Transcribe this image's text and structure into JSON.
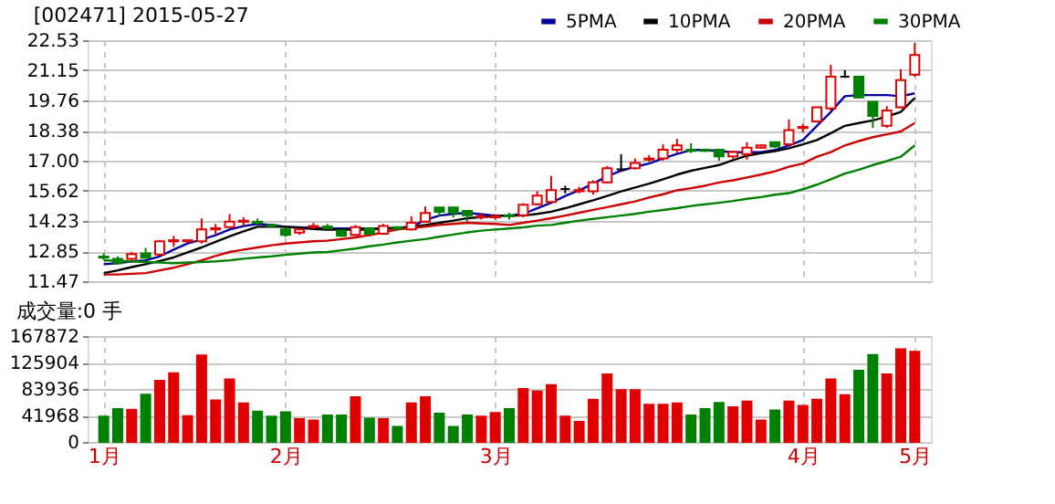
{
  "chart_data": [
    {
      "type": "candlestick",
      "title": "[002471] 2015-05-27",
      "categories": [
        null,
        null,
        null,
        null,
        null,
        null,
        null,
        null,
        null,
        null,
        null,
        null,
        null,
        null,
        null,
        null,
        null,
        null,
        null,
        null,
        null,
        null,
        null,
        null,
        null,
        null,
        null,
        null,
        null,
        null,
        null,
        null,
        null,
        null,
        null,
        null,
        null,
        null,
        null,
        null,
        null,
        null,
        null,
        null,
        null,
        null,
        null,
        null,
        null,
        null,
        null,
        null,
        null,
        null,
        null,
        null,
        null,
        null,
        null
      ],
      "ohlc": [
        [
          12.6,
          12.75,
          12.45,
          12.55
        ],
        [
          12.5,
          12.6,
          12.25,
          12.3
        ],
        [
          12.5,
          12.8,
          12.45,
          12.72
        ],
        [
          12.75,
          13.0,
          12.5,
          12.55
        ],
        [
          12.7,
          13.35,
          12.65,
          13.3
        ],
        [
          13.3,
          13.55,
          13.05,
          13.35
        ],
        [
          13.3,
          13.4,
          13.25,
          13.35
        ],
        [
          13.3,
          14.35,
          13.2,
          13.85
        ],
        [
          13.85,
          14.1,
          13.6,
          13.9
        ],
        [
          13.95,
          14.55,
          13.95,
          14.2
        ],
        [
          14.2,
          14.4,
          14.0,
          14.25
        ],
        [
          14.2,
          14.35,
          14.05,
          14.15
        ],
        [
          14.05,
          14.1,
          13.95,
          14.0
        ],
        [
          13.85,
          13.9,
          13.5,
          13.6
        ],
        [
          13.7,
          13.9,
          13.6,
          13.85
        ],
        [
          13.95,
          14.15,
          13.85,
          14.0
        ],
        [
          13.98,
          14.1,
          13.85,
          13.9
        ],
        [
          13.8,
          13.85,
          13.5,
          13.55
        ],
        [
          13.6,
          14.05,
          13.55,
          13.95
        ],
        [
          13.9,
          13.95,
          13.6,
          13.65
        ],
        [
          13.65,
          14.1,
          13.6,
          14.0
        ],
        [
          13.95,
          14.0,
          13.8,
          13.88
        ],
        [
          13.85,
          14.45,
          13.8,
          14.15
        ],
        [
          14.2,
          14.9,
          14.15,
          14.6
        ],
        [
          14.85,
          14.85,
          14.45,
          14.65
        ],
        [
          14.85,
          14.9,
          14.4,
          14.6
        ],
        [
          14.7,
          14.7,
          14.2,
          14.5
        ],
        [
          14.4,
          14.6,
          14.3,
          14.45
        ],
        [
          14.4,
          14.55,
          14.3,
          14.45
        ],
        [
          14.5,
          14.6,
          14.3,
          14.45
        ],
        [
          14.5,
          15.05,
          14.4,
          14.98
        ],
        [
          15.0,
          15.6,
          14.95,
          15.4
        ],
        [
          15.1,
          16.3,
          15.1,
          15.65
        ],
        [
          15.7,
          15.85,
          15.5,
          15.7
        ],
        [
          15.6,
          15.8,
          15.5,
          15.65
        ],
        [
          15.6,
          16.1,
          15.45,
          16.0
        ],
        [
          16.0,
          16.75,
          15.95,
          16.65
        ],
        [
          16.6,
          17.3,
          16.55,
          16.6
        ],
        [
          16.65,
          17.1,
          16.6,
          16.9
        ],
        [
          17.05,
          17.25,
          16.95,
          17.1
        ],
        [
          17.1,
          17.75,
          17.0,
          17.5
        ],
        [
          17.5,
          18.0,
          17.35,
          17.7
        ],
        [
          17.5,
          17.8,
          17.35,
          17.45
        ],
        [
          17.5,
          17.55,
          17.4,
          17.45
        ],
        [
          17.5,
          17.5,
          17.0,
          17.2
        ],
        [
          17.2,
          17.45,
          17.1,
          17.4
        ],
        [
          17.3,
          17.85,
          17.05,
          17.6
        ],
        [
          17.6,
          17.75,
          17.55,
          17.7
        ],
        [
          17.85,
          17.85,
          17.6,
          17.65
        ],
        [
          17.75,
          18.9,
          17.7,
          18.4
        ],
        [
          18.5,
          18.7,
          18.3,
          18.55
        ],
        [
          18.8,
          19.45,
          18.75,
          19.45
        ],
        [
          19.4,
          21.4,
          19.3,
          20.85
        ],
        [
          20.85,
          21.15,
          20.8,
          20.85
        ],
        [
          20.85,
          20.85,
          19.85,
          19.9
        ],
        [
          19.7,
          19.7,
          18.5,
          19.05
        ],
        [
          18.6,
          19.5,
          18.5,
          19.3
        ],
        [
          19.45,
          21.2,
          19.4,
          20.7
        ],
        [
          20.95,
          22.4,
          20.85,
          21.85
        ]
      ],
      "series": [
        {
          "name": "5PMA",
          "type": "line",
          "color": "#0000a0",
          "values": [
            12.25,
            12.3,
            12.38,
            12.43,
            12.61,
            12.92,
            13.2,
            13.38,
            13.58,
            13.84,
            14.0,
            14.1,
            14.05,
            13.97,
            13.94,
            13.92,
            13.89,
            13.89,
            13.89,
            13.89,
            13.89,
            13.89,
            13.97,
            14.28,
            14.48,
            14.56,
            14.61,
            14.54,
            14.48,
            14.48,
            14.56,
            14.82,
            15.07,
            15.38,
            15.64,
            15.95,
            16.28,
            16.54,
            16.72,
            16.87,
            17.11,
            17.31,
            17.49,
            17.49,
            17.44,
            17.39,
            17.39,
            17.39,
            17.49,
            17.7,
            17.95,
            18.6,
            19.24,
            19.96,
            20.01,
            20.01,
            20.01,
            19.96,
            20.09
          ]
        },
        {
          "name": "10PMA",
          "type": "line",
          "color": "#000000",
          "values": [
            11.84,
            11.97,
            12.12,
            12.25,
            12.4,
            12.56,
            12.79,
            13.02,
            13.28,
            13.53,
            13.76,
            13.97,
            13.97,
            13.97,
            13.92,
            13.87,
            13.84,
            13.84,
            13.84,
            13.84,
            13.89,
            13.92,
            13.97,
            14.05,
            14.15,
            14.25,
            14.36,
            14.41,
            14.46,
            14.48,
            14.48,
            14.56,
            14.66,
            14.82,
            15.0,
            15.18,
            15.38,
            15.59,
            15.77,
            15.95,
            16.15,
            16.36,
            16.54,
            16.67,
            16.8,
            17.03,
            17.23,
            17.34,
            17.44,
            17.57,
            17.75,
            17.95,
            18.26,
            18.6,
            18.73,
            18.85,
            19.03,
            19.24,
            19.88
          ]
        },
        {
          "name": "20PMA",
          "type": "line",
          "color": "#cc0000",
          "values": [
            11.78,
            11.78,
            11.81,
            11.84,
            11.97,
            12.09,
            12.25,
            12.43,
            12.63,
            12.81,
            12.92,
            13.02,
            13.12,
            13.2,
            13.25,
            13.3,
            13.33,
            13.4,
            13.48,
            13.58,
            13.71,
            13.84,
            13.92,
            13.97,
            14.05,
            14.1,
            14.15,
            14.12,
            14.1,
            14.05,
            14.15,
            14.25,
            14.36,
            14.48,
            14.61,
            14.74,
            14.87,
            15.0,
            15.13,
            15.31,
            15.46,
            15.64,
            15.74,
            15.85,
            16.0,
            16.1,
            16.23,
            16.36,
            16.51,
            16.72,
            16.87,
            17.18,
            17.39,
            17.7,
            17.9,
            18.08,
            18.21,
            18.34,
            18.73
          ]
        },
        {
          "name": "30PMA",
          "type": "line",
          "color": "#008000",
          "values": [
            12.43,
            12.4,
            12.38,
            12.35,
            12.33,
            12.3,
            12.33,
            12.35,
            12.38,
            12.43,
            12.5,
            12.56,
            12.61,
            12.68,
            12.74,
            12.79,
            12.81,
            12.89,
            12.97,
            13.07,
            13.15,
            13.25,
            13.33,
            13.4,
            13.51,
            13.61,
            13.71,
            13.79,
            13.84,
            13.89,
            13.94,
            14.02,
            14.05,
            14.15,
            14.25,
            14.33,
            14.41,
            14.48,
            14.56,
            14.66,
            14.74,
            14.82,
            14.92,
            15.0,
            15.07,
            15.15,
            15.25,
            15.33,
            15.44,
            15.51,
            15.69,
            15.9,
            16.15,
            16.41,
            16.59,
            16.8,
            16.98,
            17.18,
            17.7
          ]
        }
      ],
      "ylim": [
        11.47,
        22.53
      ],
      "yticks": [
        11.47,
        12.85,
        14.23,
        15.62,
        {
          "value": 17,
          "label": "17.00"
        },
        18.38,
        19.76,
        21.15,
        22.53
      ],
      "grid": true,
      "legend": "top right",
      "tick_labels": "y"
    },
    {
      "type": "bar",
      "title": "成交量:0 手",
      "categories": [
        "1月",
        null,
        null,
        null,
        null,
        null,
        null,
        null,
        null,
        null,
        null,
        null,
        null,
        "2月",
        null,
        null,
        null,
        null,
        null,
        null,
        null,
        null,
        null,
        null,
        null,
        null,
        null,
        null,
        "3月",
        null,
        null,
        null,
        null,
        null,
        null,
        null,
        null,
        null,
        null,
        null,
        null,
        null,
        null,
        null,
        null,
        null,
        null,
        null,
        null,
        null,
        "4月",
        null,
        null,
        null,
        null,
        null,
        null,
        null,
        "5月"
      ],
      "values": [
        40000,
        52000,
        51000,
        75000,
        97000,
        109000,
        41000,
        137000,
        66000,
        99000,
        61000,
        48000,
        40000,
        47000,
        36000,
        34000,
        42000,
        42000,
        71000,
        37000,
        36000,
        24000,
        61000,
        71000,
        45000,
        24000,
        42000,
        40000,
        46000,
        52000,
        84000,
        80000,
        90000,
        40000,
        32000,
        67000,
        107000,
        82000,
        82000,
        59000,
        59000,
        61000,
        42000,
        52000,
        62000,
        55000,
        64000,
        34000,
        50000,
        64000,
        57000,
        67000,
        99000,
        74000,
        113000,
        138000,
        107000,
        147000,
        143000
      ],
      "colors": [
        "#008000",
        "#008000",
        "#e00000",
        "#008000",
        "#e00000",
        "#e00000",
        "#e00000",
        "#e00000",
        "#e00000",
        "#e00000",
        "#e00000",
        "#008000",
        "#008000",
        "#008000",
        "#e00000",
        "#e00000",
        "#008000",
        "#008000",
        "#e00000",
        "#008000",
        "#e00000",
        "#008000",
        "#e00000",
        "#e00000",
        "#008000",
        "#008000",
        "#008000",
        "#e00000",
        "#e00000",
        "#008000",
        "#e00000",
        "#e00000",
        "#e00000",
        "#e00000",
        "#e00000",
        "#e00000",
        "#e00000",
        "#e00000",
        "#e00000",
        "#e00000",
        "#e00000",
        "#e00000",
        "#008000",
        "#008000",
        "#008000",
        "#e00000",
        "#e00000",
        "#e00000",
        "#008000",
        "#e00000",
        "#e00000",
        "#e00000",
        "#e00000",
        "#e00000",
        "#008000",
        "#008000",
        "#e00000",
        "#e00000",
        "#e00000"
      ],
      "ylim": [
        0,
        167872
      ],
      "yticks": [
        0,
        41968,
        83936,
        125904,
        167872
      ],
      "grid": true
    }
  ]
}
